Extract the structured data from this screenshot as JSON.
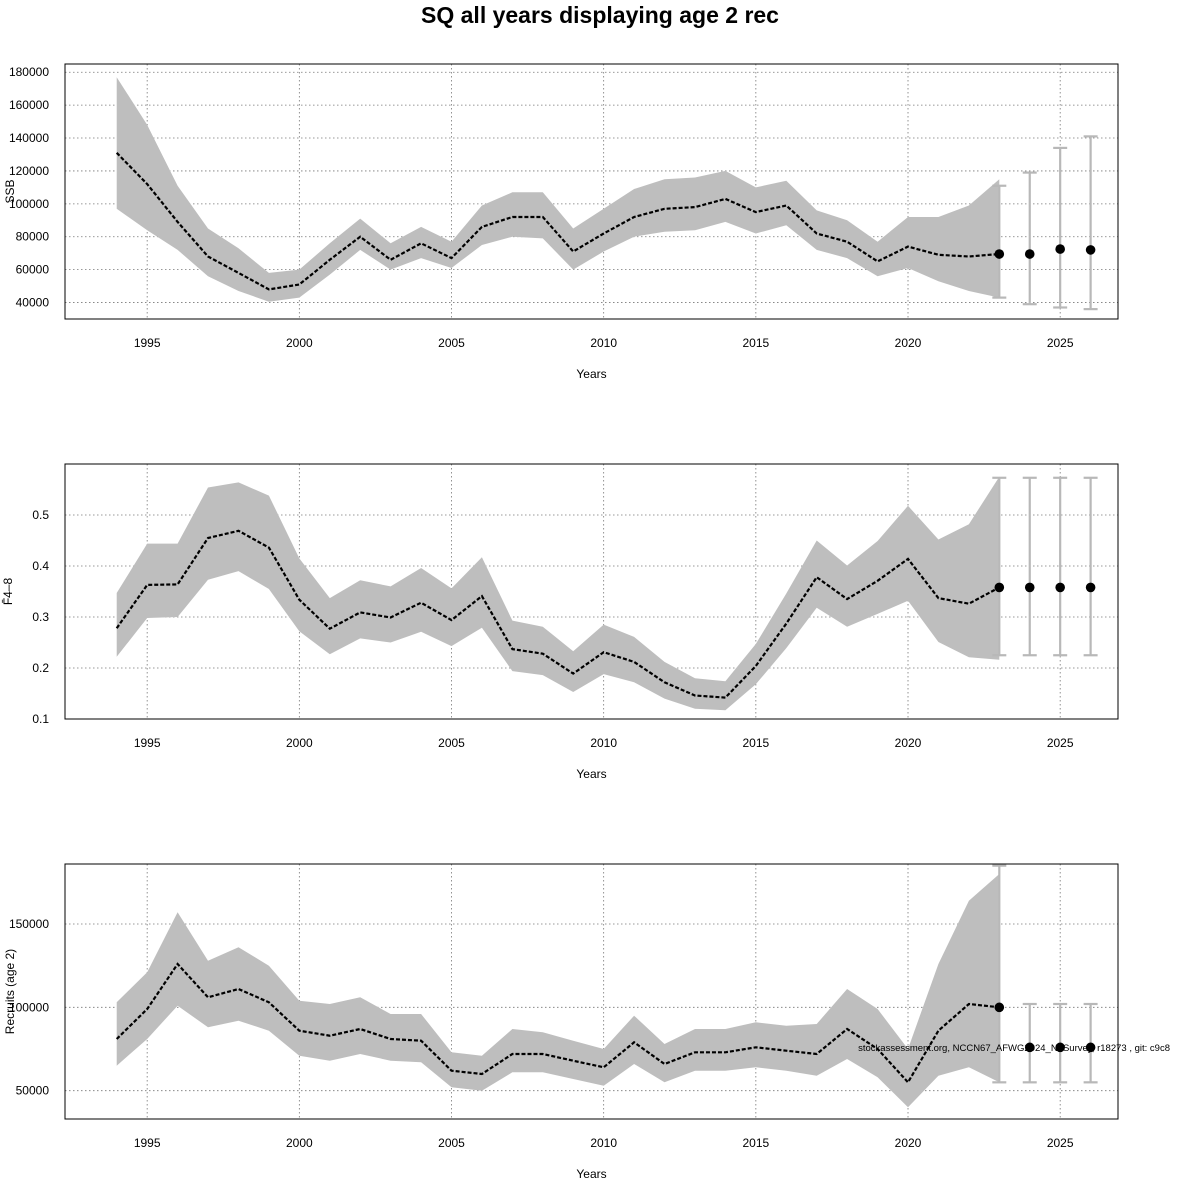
{
  "title": "SQ all years displaying age 2 rec",
  "footnote": "stockassessment.org, NCCN67_AFWG2024_NoSurvey, r18273 , git: c9c8",
  "style": {
    "band": "#bebebe",
    "errorbar": "#b8b8b8",
    "line": "#000000"
  },
  "chart_data": [
    {
      "type": "line",
      "title": "",
      "xlabel": "Years",
      "ylabel": "SSB",
      "xlim": [
        1992.3,
        2026.9
      ],
      "ylim": [
        30000,
        185000
      ],
      "xticks": [
        "1995",
        "2000",
        "2005",
        "2010",
        "2015",
        "2020",
        "2025"
      ],
      "yticks": [
        "40000",
        "60000",
        "80000",
        "100000",
        "120000",
        "140000",
        "160000",
        "180000"
      ],
      "grid": true,
      "series": [
        {
          "x": [
            1994,
            1995,
            1996,
            1997,
            1998,
            1999,
            2000,
            2001,
            2002,
            2003,
            2004,
            2005,
            2006,
            2007,
            2008,
            2009,
            2010,
            2011,
            2012,
            2013,
            2014,
            2015,
            2016,
            2017,
            2018,
            2019,
            2020,
            2021,
            2022,
            2023
          ],
          "estimate": [
            131000,
            112000,
            89000,
            68000,
            58000,
            48000,
            51000,
            66000,
            80000,
            66000,
            76000,
            67000,
            86000,
            92000,
            92000,
            71000,
            82000,
            92000,
            97000,
            98000,
            103000,
            95000,
            99000,
            82000,
            77000,
            65000,
            74000,
            69000,
            68000,
            69500
          ],
          "lower": [
            97000,
            84000,
            72000,
            56000,
            47000,
            40500,
            43000,
            57000,
            72000,
            60000,
            67000,
            61000,
            75000,
            80000,
            79000,
            60000,
            71000,
            80000,
            83000,
            84000,
            89000,
            82000,
            87000,
            72000,
            67000,
            56000,
            61000,
            53000,
            47000,
            43000
          ],
          "upper": [
            177000,
            148000,
            111000,
            85000,
            73000,
            58000,
            60000,
            76000,
            91000,
            76000,
            86000,
            77000,
            99000,
            107000,
            107000,
            85000,
            97000,
            109000,
            115000,
            116000,
            120000,
            110000,
            114000,
            96000,
            90000,
            77000,
            92000,
            92000,
            99000,
            115000
          ]
        }
      ],
      "forecast": {
        "x": [
          2023,
          2024,
          2025,
          2026
        ],
        "values": [
          69500,
          69500,
          72500,
          72000
        ],
        "lower": [
          43000,
          39000,
          37000,
          36000
        ],
        "upper": [
          111000,
          119000,
          134000,
          141000
        ]
      }
    },
    {
      "type": "line",
      "title": "",
      "xlabel": "Years",
      "ylabel": "F̄4–8",
      "xlim": [
        1992.3,
        2026.9
      ],
      "ylim": [
        0.1,
        0.6
      ],
      "xticks": [
        "1995",
        "2000",
        "2005",
        "2010",
        "2015",
        "2020",
        "2025"
      ],
      "yticks": [
        "0.1",
        "0.2",
        "0.3",
        "0.4",
        "0.5"
      ],
      "grid": true,
      "series": [
        {
          "x": [
            1994,
            1995,
            1996,
            1997,
            1998,
            1999,
            2000,
            2001,
            2002,
            2003,
            2004,
            2005,
            2006,
            2007,
            2008,
            2009,
            2010,
            2011,
            2012,
            2013,
            2014,
            2015,
            2016,
            2017,
            2018,
            2019,
            2020,
            2021,
            2022,
            2023
          ],
          "estimate": [
            0.278,
            0.363,
            0.364,
            0.455,
            0.469,
            0.436,
            0.334,
            0.277,
            0.309,
            0.299,
            0.328,
            0.294,
            0.341,
            0.237,
            0.228,
            0.189,
            0.231,
            0.212,
            0.172,
            0.146,
            0.142,
            0.204,
            0.287,
            0.378,
            0.335,
            0.371,
            0.414,
            0.337,
            0.326,
            0.358
          ],
          "lower": [
            0.222,
            0.298,
            0.3,
            0.373,
            0.39,
            0.355,
            0.272,
            0.227,
            0.258,
            0.25,
            0.271,
            0.243,
            0.279,
            0.194,
            0.186,
            0.153,
            0.188,
            0.172,
            0.14,
            0.12,
            0.117,
            0.168,
            0.239,
            0.318,
            0.281,
            0.306,
            0.332,
            0.251,
            0.221,
            0.216
          ],
          "upper": [
            0.347,
            0.444,
            0.444,
            0.554,
            0.564,
            0.538,
            0.415,
            0.337,
            0.372,
            0.36,
            0.396,
            0.356,
            0.417,
            0.293,
            0.281,
            0.233,
            0.285,
            0.261,
            0.212,
            0.18,
            0.174,
            0.247,
            0.346,
            0.45,
            0.401,
            0.449,
            0.518,
            0.452,
            0.482,
            0.575
          ]
        }
      ],
      "forecast": {
        "x": [
          2023,
          2024,
          2025,
          2026
        ],
        "values": [
          0.358,
          0.358,
          0.358,
          0.358
        ],
        "lower": [
          0.225,
          0.225,
          0.225,
          0.225
        ],
        "upper": [
          0.573,
          0.573,
          0.573,
          0.573
        ]
      }
    },
    {
      "type": "line",
      "title": "",
      "xlabel": "Years",
      "ylabel": "Recruits (age 2)",
      "xlim": [
        1992.3,
        2026.9
      ],
      "ylim": [
        33000,
        186000
      ],
      "xticks": [
        "1995",
        "2000",
        "2005",
        "2010",
        "2015",
        "2020",
        "2025"
      ],
      "yticks": [
        "50000",
        "100000",
        "150000"
      ],
      "grid": true,
      "series": [
        {
          "x": [
            1994,
            1995,
            1996,
            1997,
            1998,
            1999,
            2000,
            2001,
            2002,
            2003,
            2004,
            2005,
            2006,
            2007,
            2008,
            2009,
            2010,
            2011,
            2012,
            2013,
            2014,
            2015,
            2016,
            2017,
            2018,
            2019,
            2020,
            2021,
            2022,
            2023
          ],
          "estimate": [
            81000,
            99000,
            126000,
            106000,
            111000,
            103000,
            86000,
            83000,
            87000,
            81000,
            80000,
            62000,
            60000,
            72000,
            72000,
            68000,
            64000,
            79000,
            66000,
            73000,
            73000,
            76000,
            74000,
            72000,
            87000,
            75000,
            55000,
            86000,
            102000,
            100000
          ],
          "lower": [
            65000,
            81000,
            101000,
            88000,
            92000,
            86000,
            71000,
            68000,
            72000,
            68000,
            67000,
            52000,
            50000,
            61000,
            61000,
            57000,
            53000,
            66000,
            55000,
            62000,
            62000,
            64000,
            62000,
            59000,
            69000,
            58000,
            40000,
            59000,
            64000,
            55000
          ],
          "upper": [
            103000,
            121000,
            157000,
            128000,
            136000,
            125000,
            104000,
            102000,
            106000,
            96000,
            96000,
            73000,
            71000,
            87000,
            85000,
            80000,
            75000,
            95000,
            78000,
            87000,
            87000,
            91000,
            89000,
            90000,
            111000,
            99000,
            75000,
            126000,
            164000,
            180000
          ]
        }
      ],
      "forecast": {
        "x": [
          2023,
          2024,
          2025,
          2026
        ],
        "values": [
          100000,
          76000,
          76000,
          76000
        ],
        "lower": [
          55000,
          55000,
          55000,
          55000
        ],
        "upper": [
          185000,
          102000,
          102000,
          102000
        ]
      }
    }
  ]
}
